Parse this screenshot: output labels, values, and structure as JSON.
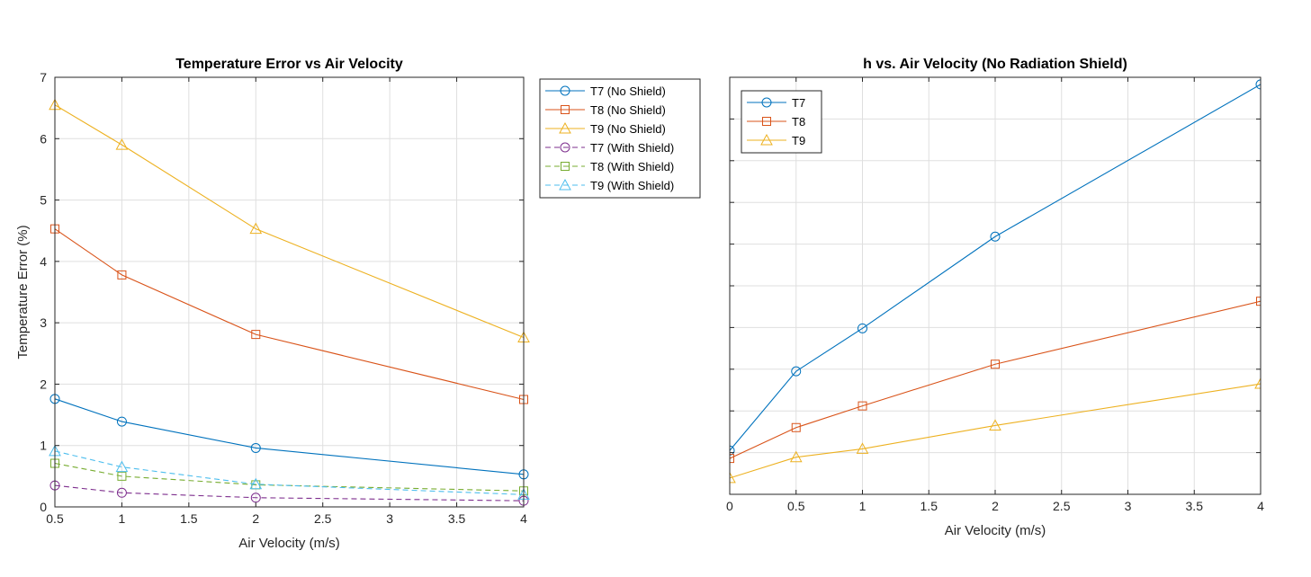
{
  "chart_data": [
    {
      "type": "line",
      "title": "Temperature Error vs Air Velocity",
      "xlabel": "Air Velocity (m/s)",
      "ylabel": "Temperature Error (%)",
      "xlim": [
        0.5,
        4
      ],
      "ylim": [
        0,
        7
      ],
      "xticks": [
        0.5,
        1,
        1.5,
        2,
        2.5,
        3,
        3.5,
        4
      ],
      "xtick_labels": [
        "0.5",
        "1",
        "1.5",
        "2",
        "2.5",
        "3",
        "3.5",
        "4"
      ],
      "yticks": [
        0,
        1,
        2,
        3,
        4,
        5,
        6,
        7
      ],
      "ytick_labels": [
        "0",
        "1",
        "2",
        "3",
        "4",
        "5",
        "6",
        "7"
      ],
      "grid": true,
      "legend_location": "outside-right",
      "x": [
        0.5,
        1,
        2,
        4
      ],
      "series": [
        {
          "name": "T7 (No Shield)",
          "values": [
            1.76,
            1.39,
            0.96,
            0.53
          ],
          "color": "#0072BD",
          "marker": "circle",
          "dashed": false
        },
        {
          "name": "T8 (No Shield)",
          "values": [
            4.53,
            3.78,
            2.81,
            1.75
          ],
          "color": "#D95319",
          "marker": "square",
          "dashed": false
        },
        {
          "name": "T9 (No Shield)",
          "values": [
            6.55,
            5.9,
            4.53,
            2.76
          ],
          "color": "#EDB120",
          "marker": "triangle",
          "dashed": false
        },
        {
          "name": "T7 (With Shield)",
          "values": [
            0.35,
            0.23,
            0.15,
            0.1
          ],
          "color": "#7E2F8E",
          "marker": "circle",
          "dashed": true
        },
        {
          "name": "T8 (With Shield)",
          "values": [
            0.71,
            0.5,
            0.36,
            0.26
          ],
          "color": "#77AC30",
          "marker": "square",
          "dashed": true
        },
        {
          "name": "T9 (With Shield)",
          "values": [
            0.91,
            0.65,
            0.37,
            0.2
          ],
          "color": "#4DBEEE",
          "marker": "triangle",
          "dashed": true
        }
      ]
    },
    {
      "type": "line",
      "title": "h vs. Air Velocity (No Radiation Shield)",
      "xlabel": "Air Velocity (m/s)",
      "ylabel": "",
      "xlim": [
        0,
        4
      ],
      "ylim": [
        0,
        10
      ],
      "xticks": [
        0,
        0.5,
        1,
        1.5,
        2,
        2.5,
        3,
        3.5,
        4
      ],
      "xtick_labels": [
        "0",
        "0.5",
        "1",
        "1.5",
        "2",
        "2.5",
        "3",
        "3.5",
        "4"
      ],
      "yticks": [
        0,
        1,
        2,
        3,
        4,
        5,
        6,
        7,
        8,
        9,
        10
      ],
      "ytick_labels": [],
      "grid": true,
      "legend_location": "top-left",
      "x": [
        0,
        0.5,
        1,
        2,
        4
      ],
      "series": [
        {
          "name": "T7",
          "values": [
            1.05,
            2.95,
            3.98,
            6.18,
            9.83
          ],
          "color": "#0072BD",
          "marker": "circle",
          "dashed": false
        },
        {
          "name": "T8",
          "values": [
            0.86,
            1.6,
            2.12,
            3.12,
            4.63
          ],
          "color": "#D95319",
          "marker": "square",
          "dashed": false
        },
        {
          "name": "T9",
          "values": [
            0.39,
            0.89,
            1.09,
            1.65,
            2.65
          ],
          "color": "#EDB120",
          "marker": "triangle",
          "dashed": false
        }
      ]
    }
  ]
}
